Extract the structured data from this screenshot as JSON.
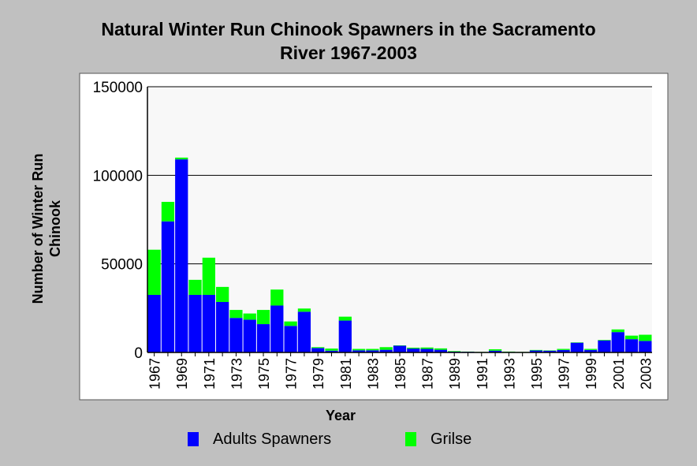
{
  "chart_data": {
    "type": "bar",
    "stacked": true,
    "title": "Natural Winter Run Chinook Spawners in the Sacramento River 1967-2003",
    "title_lines": [
      "Natural Winter Run Chinook Spawners in the Sacramento",
      "River 1967-2003"
    ],
    "xlabel": "Year",
    "ylabel_lines": [
      "Number of Winter Run",
      "Chinook"
    ],
    "ylim": [
      0,
      150000
    ],
    "yticks": [
      0,
      50000,
      100000,
      150000
    ],
    "ytick_labels": [
      "0",
      "50000",
      "100000",
      "150000"
    ],
    "grid": true,
    "legend_position": "bottom",
    "categories": [
      "1967",
      "1968",
      "1969",
      "1970",
      "1971",
      "1972",
      "1973",
      "1974",
      "1975",
      "1976",
      "1977",
      "1978",
      "1979",
      "1980",
      "1981",
      "1982",
      "1983",
      "1984",
      "1985",
      "1986",
      "1987",
      "1988",
      "1989",
      "1990",
      "1991",
      "1992",
      "1993",
      "1994",
      "1995",
      "1996",
      "1997",
      "1998",
      "1999",
      "2000",
      "2001",
      "2002",
      "2003"
    ],
    "xtick_labels": [
      "1967",
      "1969",
      "1971",
      "1973",
      "1975",
      "1977",
      "1979",
      "1981",
      "1983",
      "1985",
      "1987",
      "1989",
      "1991",
      "1993",
      "1995",
      "1997",
      "1999",
      "2001",
      "2003"
    ],
    "series": [
      {
        "name": "Adults Spawners",
        "color": "#0000ff",
        "values": [
          32500,
          74000,
          109000,
          32500,
          32500,
          28500,
          19500,
          18500,
          16000,
          26500,
          15000,
          23000,
          2500,
          1000,
          18000,
          1200,
          1200,
          1500,
          3800,
          2200,
          2000,
          1500,
          500,
          400,
          200,
          1000,
          300,
          200,
          1100,
          1000,
          1400,
          5500,
          1400,
          6800,
          11500,
          7500,
          6500
        ]
      },
      {
        "name": "Grilse",
        "color": "#00ff00",
        "values": [
          25500,
          11000,
          1000,
          8500,
          21000,
          8500,
          4500,
          3500,
          8000,
          9000,
          2500,
          1800,
          500,
          1200,
          2200,
          800,
          800,
          1500,
          200,
          500,
          800,
          800,
          300,
          100,
          100,
          800,
          200,
          100,
          300,
          200,
          600,
          200,
          600,
          300,
          1500,
          2000,
          3500
        ]
      }
    ]
  }
}
